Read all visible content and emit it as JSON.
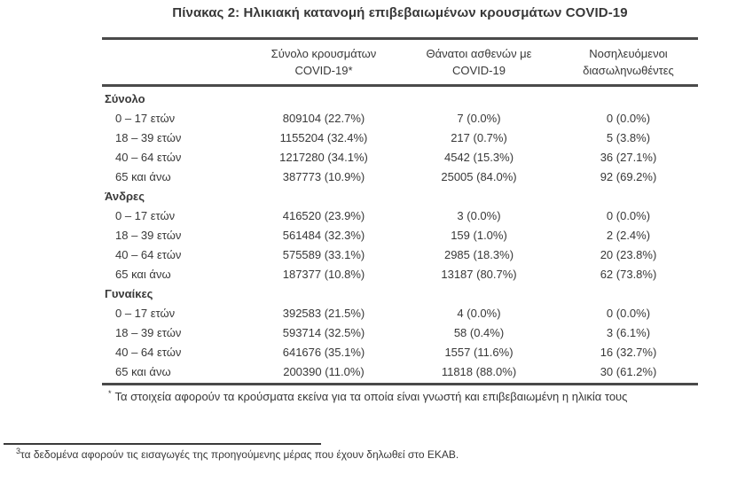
{
  "page": {
    "title": "Πίνακας 2: Ηλικιακή κατανομή επιβεβαιωμένων κρουσμάτων COVID-19"
  },
  "table": {
    "columns": [
      {
        "line1": "Σύνολο κρουσμάτων",
        "line2": "COVID-19*"
      },
      {
        "line1": "Θάνατοι ασθενών με",
        "line2": "COVID-19"
      },
      {
        "line1": "Νοσηλευόμενοι",
        "line2": "διασωληνωθέντες"
      }
    ],
    "sections": [
      {
        "name": "Σύνολο",
        "rows": [
          {
            "label": "0 – 17 ετών",
            "cases": "809104 (22.7%)",
            "deaths": "7 (0.0%)",
            "intubated": "0 (0.0%)"
          },
          {
            "label": "18 – 39 ετών",
            "cases": "1155204 (32.4%)",
            "deaths": "217 (0.7%)",
            "intubated": "5 (3.8%)"
          },
          {
            "label": "40 – 64 ετών",
            "cases": "1217280 (34.1%)",
            "deaths": "4542 (15.3%)",
            "intubated": "36 (27.1%)"
          },
          {
            "label": "65 και άνω",
            "cases": "387773 (10.9%)",
            "deaths": "25005 (84.0%)",
            "intubated": "92 (69.2%)"
          }
        ]
      },
      {
        "name": "Άνδρες",
        "rows": [
          {
            "label": "0 – 17 ετών",
            "cases": "416520 (23.9%)",
            "deaths": "3 (0.0%)",
            "intubated": "0 (0.0%)"
          },
          {
            "label": "18 – 39 ετών",
            "cases": "561484 (32.3%)",
            "deaths": "159 (1.0%)",
            "intubated": "2 (2.4%)"
          },
          {
            "label": "40 – 64 ετών",
            "cases": "575589 (33.1%)",
            "deaths": "2985 (18.3%)",
            "intubated": "20 (23.8%)"
          },
          {
            "label": "65 και άνω",
            "cases": "187377 (10.8%)",
            "deaths": "13187 (80.7%)",
            "intubated": "62 (73.8%)"
          }
        ]
      },
      {
        "name": "Γυναίκες",
        "rows": [
          {
            "label": "0 – 17 ετών",
            "cases": "392583 (21.5%)",
            "deaths": "4 (0.0%)",
            "intubated": "0 (0.0%)"
          },
          {
            "label": "18 – 39 ετών",
            "cases": "593714 (32.5%)",
            "deaths": "58 (0.4%)",
            "intubated": "3 (6.1%)"
          },
          {
            "label": "40 – 64 ετών",
            "cases": "641676 (35.1%)",
            "deaths": "1557 (11.6%)",
            "intubated": "16 (32.7%)"
          },
          {
            "label": "65 και άνω",
            "cases": "200390 (11.0%)",
            "deaths": "11818 (88.0%)",
            "intubated": "30 (61.2%)"
          }
        ]
      }
    ],
    "footnote_marker": "*",
    "footnote_text": "Τα στοιχεία αφορούν τα κρούσματα εκείνα για τα οποία είναι γνωστή και επιβεβαιωμένη η ηλικία τους"
  },
  "page_footnote": {
    "marker": "3",
    "text": "τα δεδομένα αφορούν τις εισαγωγές της προηγούμενης μέρας που έχουν δηλωθεί στο ΕΚΑΒ."
  },
  "colors": {
    "text": "#383838",
    "rule": "#4a4a4a",
    "background": "#ffffff"
  }
}
